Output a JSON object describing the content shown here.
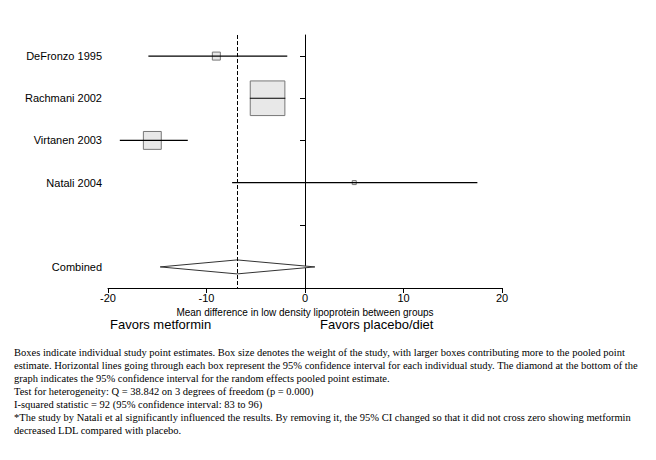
{
  "chart_data": {
    "type": "forest",
    "x_label": "Mean difference in low density lipoprotein between groups",
    "favors_left": "Favors metformin",
    "favors_right": "Favors placebo/diet",
    "categories": [
      "DeFronzo 1995",
      "Rachmani 2002",
      "Virtanen 2003",
      "Natali 2004",
      null,
      "Combined"
    ],
    "estimates": [
      -9.0,
      -3.8,
      -15.5,
      5.0,
      null,
      -6.9
    ],
    "ci_low": [
      -15.9,
      -5.6,
      -18.8,
      -7.4,
      null,
      -14.7
    ],
    "ci_high": [
      -1.8,
      -2.0,
      -11.9,
      17.5,
      null,
      1.0
    ],
    "weights": [
      4,
      75,
      20,
      1,
      null,
      null
    ],
    "markers": [
      "square",
      "square",
      "square",
      "square",
      null,
      "diamond"
    ],
    "xlim": [
      -20,
      20
    ],
    "xticks": [
      -20,
      -10,
      0,
      10,
      20
    ],
    "grid": false,
    "notes": [
      "Boxes indicate individual study point estimates. Box size denotes the weight of the study, with larger boxes contributing more to the pooled point estimate.  Horizontal lines going through each box represent the 95% confidence interval for each individual study.  The diamond at the bottom of the graph indicates the 95% confidence interval for the random effects pooled point estimate.",
      "Test for heterogeneity: Q = 38.842 on 3 degrees of freedom (p = 0.000)",
      "I-squared statistic = 92 (95% confidence interval:  83 to 96)",
      "*The study by Natali et al significantly influenced the results. By removing it, the 95% CI changed so that it did not cross zero showing metformin decreased LDL compared with placebo."
    ]
  }
}
